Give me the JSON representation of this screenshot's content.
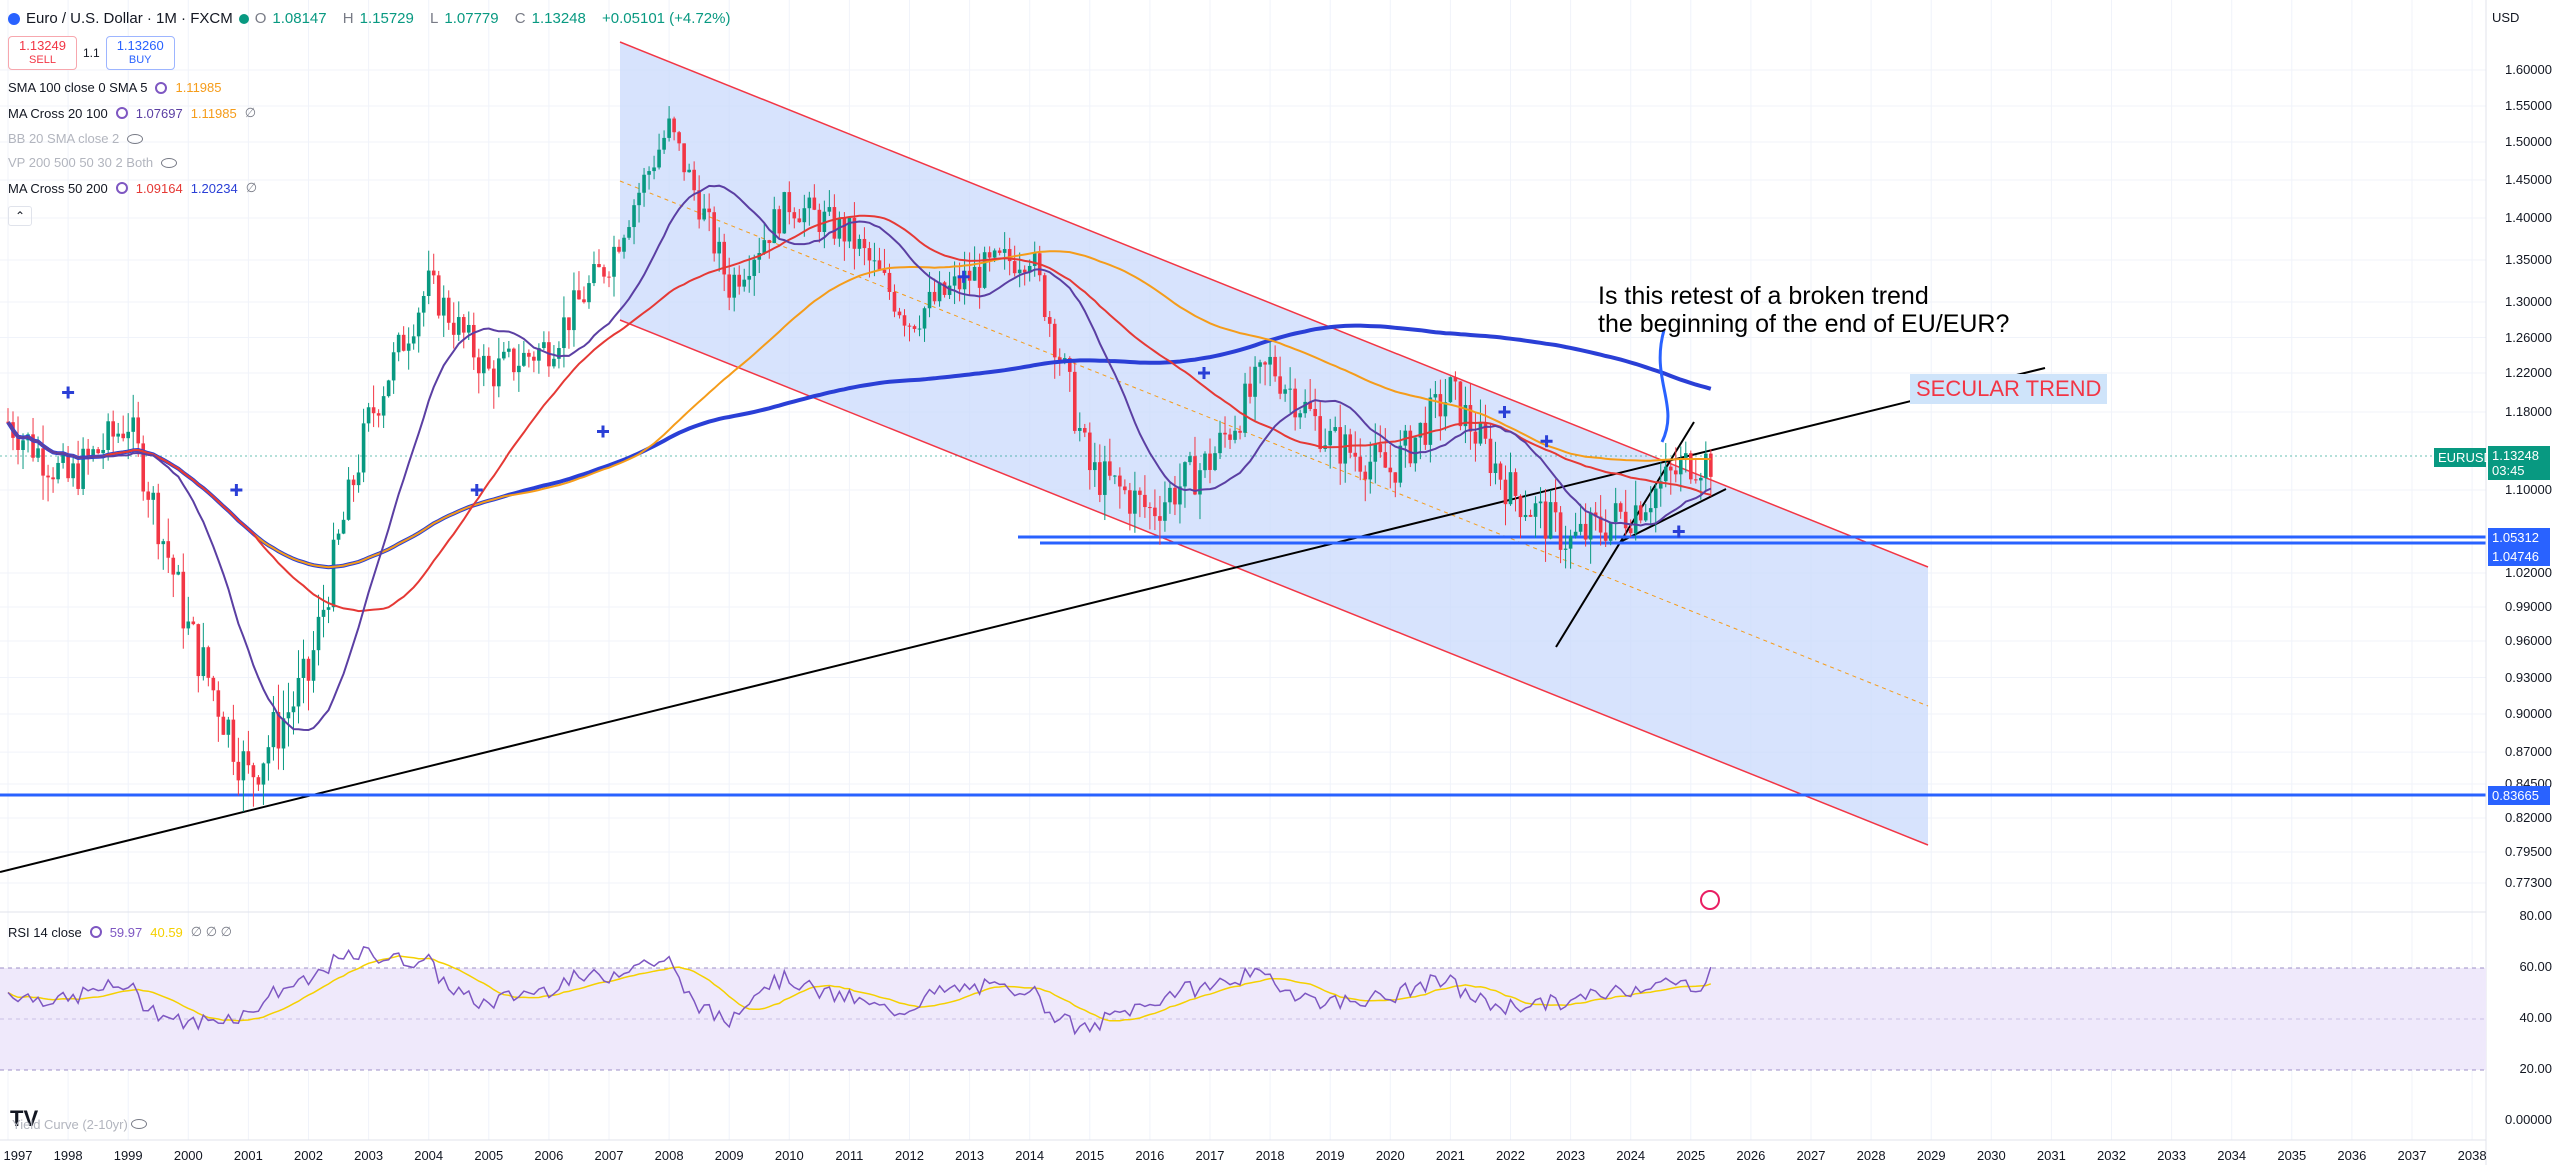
{
  "header": {
    "symbol": "Euro / U.S. Dollar · 1M · FXCM",
    "open_label": "O",
    "open": "1.08147",
    "high_label": "H",
    "high": "1.15729",
    "low_label": "L",
    "low": "1.07779",
    "close_label": "C",
    "close": "1.13248",
    "change": "+0.05101 (+4.72%)"
  },
  "trade": {
    "sell_price": "1.13249",
    "sell_label": "SELL",
    "spread": "1.1",
    "buy_price": "1.13260",
    "buy_label": "BUY"
  },
  "indicators": [
    {
      "name": "SMA 100 close 0 SMA 5",
      "v1": "1.11985",
      "v2": ""
    },
    {
      "name": "MA Cross 20 100",
      "v1": "1.07697",
      "v2": "1.11985",
      "v3": "∅"
    },
    {
      "name": "BB 20 SMA close 2",
      "v1": "",
      "v2": ""
    },
    {
      "name": "VP 200 500 50 30 2 Both",
      "v1": "",
      "v2": ""
    },
    {
      "name": "MA Cross 50 200",
      "v1": "1.09164",
      "v2": "1.20234",
      "v3": "∅"
    }
  ],
  "annotation": {
    "line1": "Is this retest of a broken trend",
    "line2": "the beginning of the end of EU/EUR?"
  },
  "secular_label": "SECULAR TREND",
  "currency": "USD",
  "price_axis": [
    "1.60000",
    "1.55000",
    "1.50000",
    "1.45000",
    "1.40000",
    "1.35000",
    "1.30000",
    "1.26000",
    "1.22000",
    "1.18000",
    "1.10000",
    "1.02000",
    "0.99000",
    "0.96000",
    "0.93000",
    "0.90000",
    "0.87000",
    "0.84500",
    "0.82000",
    "0.79500",
    "0.77300"
  ],
  "price_tags": {
    "symbol": "EURUSD",
    "last": "1.13248",
    "countdown": "03:45",
    "level1": "1.05312",
    "level2": "1.04746",
    "level3": "0.83665"
  },
  "rsi": {
    "name": "RSI 14 close",
    "v1": "59.97",
    "v2": "40.59",
    "v3": "∅ ∅ ∅",
    "axis": [
      "80.00",
      "60.00",
      "40.00",
      "20.00",
      "0.00000"
    ]
  },
  "yield_curve_label": "Yield Curve (2-10yr)",
  "time_axis": [
    "1997",
    "1998",
    "1999",
    "2000",
    "2001",
    "2002",
    "2003",
    "2004",
    "2005",
    "2006",
    "2007",
    "2008",
    "2009",
    "2010",
    "2011",
    "2012",
    "2013",
    "2014",
    "2015",
    "2016",
    "2017",
    "2018",
    "2019",
    "2020",
    "2021",
    "2022",
    "2023",
    "2024",
    "2025",
    "2026",
    "2027",
    "2028",
    "2029",
    "2030",
    "2031",
    "2032",
    "2033",
    "2034",
    "2035",
    "2036",
    "2037",
    "2038"
  ],
  "colors": {
    "up": "#089981",
    "down": "#f23645",
    "channel_fill": "#c9dafc",
    "channel_line": "#f23645",
    "ma_purple": "#5b3fa3",
    "ma_red": "#e53935",
    "ma_orange": "#f59c1a",
    "ma_blue": "#2a3fd6",
    "level_blue": "#2962ff",
    "rsi_fill": "#efe9fb"
  },
  "chart_data": {
    "type": "line",
    "title": "Euro / U.S. Dollar",
    "xlabel": "",
    "ylabel": "",
    "series": [
      {
        "name": "EURUSD",
        "x": [
          1997,
          1998,
          1999,
          2000,
          2001,
          2002,
          2003,
          2004,
          2005,
          2006,
          2007,
          2008,
          2009,
          2010,
          2011,
          2012,
          2013,
          2014,
          2015,
          2016,
          2017,
          2018,
          2019,
          2020,
          2021,
          2022,
          2023,
          2024,
          2025
        ],
        "values": [
          1.17,
          1.11,
          1.17,
          0.97,
          0.85,
          0.93,
          1.17,
          1.32,
          1.22,
          1.25,
          1.35,
          1.52,
          1.32,
          1.42,
          1.38,
          1.28,
          1.33,
          1.36,
          1.12,
          1.08,
          1.13,
          1.23,
          1.15,
          1.12,
          1.2,
          1.1,
          1.05,
          1.08,
          1.13
        ]
      }
    ],
    "ylim": [
      0.77,
      1.62
    ],
    "xlim": [
      1997,
      2038
    ]
  }
}
